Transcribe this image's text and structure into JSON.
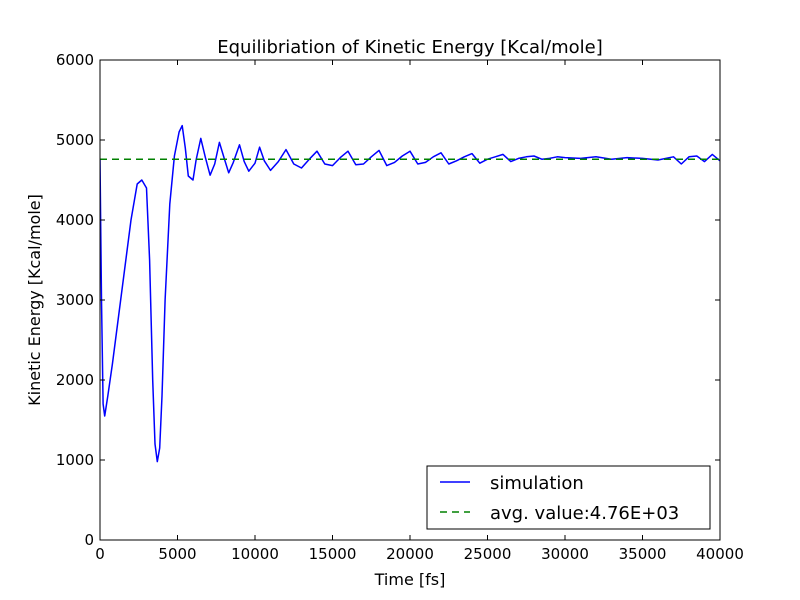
{
  "chart_data": {
    "type": "line",
    "title": "Equilibriation of Kinetic Energy [Kcal/mole]",
    "xlabel": "Time [fs]",
    "ylabel": "Kinetic Energy [Kcal/mole]",
    "xlim": [
      0,
      40000
    ],
    "ylim": [
      0,
      6000
    ],
    "xticks": [
      0,
      5000,
      10000,
      15000,
      20000,
      25000,
      30000,
      35000,
      40000
    ],
    "yticks": [
      0,
      1000,
      2000,
      3000,
      4000,
      5000,
      6000
    ],
    "grid": false,
    "legend_position": "lower-right",
    "series": [
      {
        "name": "simulation",
        "color": "#0000ff",
        "style": "solid",
        "x": [
          0,
          100,
          200,
          300,
          500,
          800,
          1200,
          1600,
          2000,
          2400,
          2700,
          3000,
          3200,
          3400,
          3550,
          3700,
          3850,
          4000,
          4200,
          4500,
          4800,
          5100,
          5300,
          5500,
          5700,
          6000,
          6200,
          6500,
          6800,
          7100,
          7400,
          7700,
          8000,
          8300,
          8600,
          9000,
          9300,
          9600,
          10000,
          10300,
          10600,
          11000,
          11500,
          12000,
          12500,
          13000,
          13500,
          14000,
          14500,
          15000,
          15500,
          16000,
          16500,
          17000,
          17500,
          18000,
          18500,
          19000,
          19500,
          20000,
          20500,
          21000,
          21500,
          22000,
          22500,
          23000,
          23500,
          24000,
          24500,
          25000,
          25500,
          26000,
          26500,
          27000,
          27500,
          28000,
          28500,
          29000,
          29500,
          30000,
          31000,
          32000,
          33000,
          34000,
          35000,
          36000,
          37000,
          37500,
          38000,
          38500,
          39000,
          39500,
          40000
        ],
        "y": [
          4750,
          3000,
          1700,
          1550,
          1800,
          2200,
          2800,
          3400,
          4000,
          4450,
          4500,
          4400,
          3500,
          2000,
          1200,
          980,
          1150,
          1800,
          3000,
          4200,
          4800,
          5100,
          5180,
          4900,
          4550,
          4500,
          4750,
          5020,
          4780,
          4560,
          4700,
          4970,
          4780,
          4590,
          4720,
          4940,
          4730,
          4610,
          4710,
          4910,
          4740,
          4620,
          4730,
          4880,
          4700,
          4650,
          4760,
          4860,
          4700,
          4680,
          4780,
          4860,
          4690,
          4700,
          4790,
          4870,
          4680,
          4720,
          4800,
          4860,
          4700,
          4720,
          4790,
          4840,
          4700,
          4740,
          4790,
          4830,
          4710,
          4760,
          4790,
          4820,
          4730,
          4770,
          4790,
          4800,
          4760,
          4770,
          4790,
          4780,
          4770,
          4790,
          4760,
          4780,
          4770,
          4750,
          4790,
          4700,
          4790,
          4800,
          4730,
          4820,
          4740
        ]
      },
      {
        "name": "avg. value:4.76E+03",
        "color": "#008000",
        "style": "dashed",
        "x": [
          0,
          40000
        ],
        "y": [
          4760,
          4760
        ]
      }
    ]
  }
}
